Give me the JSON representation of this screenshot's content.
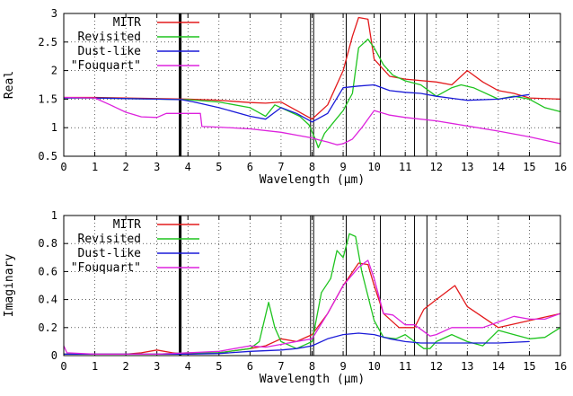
{
  "chart_data": [
    {
      "type": "line",
      "xlabel": "Wavelength (µm)",
      "ylabel": "Real",
      "xlim": [
        0,
        16
      ],
      "ylim": [
        0.5,
        3
      ],
      "xticks": [
        0,
        1,
        2,
        3,
        4,
        5,
        6,
        7,
        8,
        9,
        10,
        11,
        12,
        13,
        14,
        15,
        16
      ],
      "xtick_labels": [
        "0",
        "1",
        "2",
        "3",
        "4",
        "5",
        "6",
        "7",
        "8",
        "9",
        "10",
        "11",
        "12",
        "13",
        "14",
        "15",
        "16"
      ],
      "yticks": [
        0.5,
        1,
        1.5,
        2,
        2.5,
        3
      ],
      "ytick_labels": [
        "0.5",
        "1",
        "1.5",
        "2",
        "2.5",
        "3"
      ],
      "grid": true,
      "legend_position": "top-left",
      "vlines": [
        {
          "x": 3.75,
          "style": "thick"
        },
        {
          "x": 7.95,
          "style": "thin"
        },
        {
          "x": 8.05,
          "style": "thin"
        },
        {
          "x": 9.1,
          "style": "thin"
        },
        {
          "x": 10.2,
          "style": "thin"
        },
        {
          "x": 11.3,
          "style": "thin"
        },
        {
          "x": 11.7,
          "style": "thin"
        }
      ],
      "series": [
        {
          "name": "MITR",
          "color": "#e31a1c",
          "points": [
            [
              0,
              1.53
            ],
            [
              1,
              1.53
            ],
            [
              2,
              1.52
            ],
            [
              3,
              1.51
            ],
            [
              4,
              1.5
            ],
            [
              5,
              1.48
            ],
            [
              6,
              1.44
            ],
            [
              6.5,
              1.43
            ],
            [
              7,
              1.45
            ],
            [
              7.5,
              1.3
            ],
            [
              8,
              1.15
            ],
            [
              8.5,
              1.4
            ],
            [
              9,
              2.0
            ],
            [
              9.3,
              2.6
            ],
            [
              9.5,
              2.93
            ],
            [
              9.8,
              2.9
            ],
            [
              10,
              2.2
            ],
            [
              10.5,
              1.9
            ],
            [
              11,
              1.85
            ],
            [
              12,
              1.8
            ],
            [
              12.5,
              1.75
            ],
            [
              13,
              2.0
            ],
            [
              13.5,
              1.8
            ],
            [
              14,
              1.65
            ],
            [
              14.5,
              1.6
            ],
            [
              15,
              1.52
            ],
            [
              16,
              1.5
            ]
          ]
        },
        {
          "name": "Revisited",
          "color": "#1fc41f",
          "points": [
            [
              0,
              1.52
            ],
            [
              1,
              1.52
            ],
            [
              2,
              1.51
            ],
            [
              3,
              1.5
            ],
            [
              4,
              1.49
            ],
            [
              5,
              1.45
            ],
            [
              6,
              1.35
            ],
            [
              6.5,
              1.2
            ],
            [
              6.8,
              1.4
            ],
            [
              7.2,
              1.3
            ],
            [
              7.6,
              1.2
            ],
            [
              7.9,
              1.05
            ],
            [
              8.1,
              0.8
            ],
            [
              8.2,
              0.65
            ],
            [
              8.4,
              0.9
            ],
            [
              8.7,
              1.1
            ],
            [
              9,
              1.3
            ],
            [
              9.3,
              1.6
            ],
            [
              9.5,
              2.4
            ],
            [
              9.8,
              2.55
            ],
            [
              10,
              2.4
            ],
            [
              10.3,
              2.1
            ],
            [
              10.6,
              1.92
            ],
            [
              11,
              1.82
            ],
            [
              11.5,
              1.75
            ],
            [
              12,
              1.55
            ],
            [
              12.5,
              1.7
            ],
            [
              12.8,
              1.75
            ],
            [
              13.2,
              1.7
            ],
            [
              14,
              1.5
            ],
            [
              14.5,
              1.55
            ],
            [
              15,
              1.5
            ],
            [
              15.5,
              1.35
            ],
            [
              16,
              1.28
            ]
          ]
        },
        {
          "name": "Dust-like",
          "color": "#1a1ad8",
          "points": [
            [
              0,
              1.52
            ],
            [
              1,
              1.52
            ],
            [
              2,
              1.51
            ],
            [
              3,
              1.5
            ],
            [
              3.8,
              1.49
            ],
            [
              4.2,
              1.45
            ],
            [
              5,
              1.35
            ],
            [
              6,
              1.2
            ],
            [
              6.5,
              1.15
            ],
            [
              7,
              1.35
            ],
            [
              7.5,
              1.25
            ],
            [
              8,
              1.1
            ],
            [
              8.5,
              1.25
            ],
            [
              9,
              1.7
            ],
            [
              9.5,
              1.73
            ],
            [
              10,
              1.75
            ],
            [
              10.5,
              1.65
            ],
            [
              11,
              1.62
            ],
            [
              11.5,
              1.6
            ],
            [
              12,
              1.55
            ],
            [
              13,
              1.48
            ],
            [
              14,
              1.5
            ],
            [
              15,
              1.58
            ]
          ]
        },
        {
          "name": "\"Fouquart\"",
          "color": "#dd22dd",
          "points": [
            [
              0,
              1.53
            ],
            [
              1,
              1.52
            ],
            [
              1.5,
              1.4
            ],
            [
              2,
              1.27
            ],
            [
              2.5,
              1.19
            ],
            [
              3,
              1.18
            ],
            [
              3.3,
              1.25
            ],
            [
              3.8,
              1.25
            ],
            [
              4.4,
              1.25
            ],
            [
              4.45,
              1.02
            ],
            [
              5,
              1.01
            ],
            [
              6,
              0.98
            ],
            [
              7,
              0.92
            ],
            [
              7.5,
              0.87
            ],
            [
              8,
              0.82
            ],
            [
              8.2,
              0.79
            ],
            [
              8.5,
              0.75
            ],
            [
              8.8,
              0.7
            ],
            [
              9,
              0.72
            ],
            [
              9.3,
              0.8
            ],
            [
              9.6,
              1.0
            ],
            [
              10,
              1.3
            ],
            [
              10.5,
              1.22
            ],
            [
              11,
              1.18
            ],
            [
              12,
              1.12
            ],
            [
              13,
              1.03
            ],
            [
              14,
              0.94
            ],
            [
              15,
              0.84
            ],
            [
              16,
              0.72
            ]
          ]
        }
      ]
    },
    {
      "type": "line",
      "xlabel": "Wavelength (µm)",
      "ylabel": "Imaginary",
      "xlim": [
        0,
        16
      ],
      "ylim": [
        0,
        1
      ],
      "xticks": [
        0,
        1,
        2,
        3,
        4,
        5,
        6,
        7,
        8,
        9,
        10,
        11,
        12,
        13,
        14,
        15,
        16
      ],
      "xtick_labels": [
        "0",
        "1",
        "2",
        "3",
        "4",
        "5",
        "6",
        "7",
        "8",
        "9",
        "10",
        "11",
        "12",
        "13",
        "14",
        "15",
        "16"
      ],
      "yticks": [
        0,
        0.2,
        0.4,
        0.6,
        0.8,
        1
      ],
      "ytick_labels": [
        "0",
        "0.2",
        "0.4",
        "0.6",
        "0.8",
        "1"
      ],
      "grid": true,
      "legend_position": "top-left",
      "vlines": [
        {
          "x": 3.75,
          "style": "thick"
        },
        {
          "x": 7.95,
          "style": "thin"
        },
        {
          "x": 8.05,
          "style": "thin"
        },
        {
          "x": 9.1,
          "style": "thin"
        },
        {
          "x": 10.2,
          "style": "thin"
        },
        {
          "x": 11.3,
          "style": "thin"
        },
        {
          "x": 11.7,
          "style": "thin"
        }
      ],
      "series": [
        {
          "name": "MITR",
          "color": "#e31a1c",
          "points": [
            [
              0,
              0.01
            ],
            [
              1,
              0.01
            ],
            [
              2,
              0.01
            ],
            [
              2.5,
              0.02
            ],
            [
              3,
              0.04
            ],
            [
              3.5,
              0.02
            ],
            [
              4,
              0.01
            ],
            [
              5,
              0.02
            ],
            [
              6,
              0.05
            ],
            [
              6.5,
              0.07
            ],
            [
              7,
              0.12
            ],
            [
              7.5,
              0.1
            ],
            [
              8,
              0.15
            ],
            [
              8.5,
              0.3
            ],
            [
              9,
              0.5
            ],
            [
              9.5,
              0.66
            ],
            [
              9.8,
              0.65
            ],
            [
              10,
              0.5
            ],
            [
              10.3,
              0.3
            ],
            [
              10.8,
              0.2
            ],
            [
              11.3,
              0.2
            ],
            [
              11.6,
              0.33
            ],
            [
              12,
              0.4
            ],
            [
              12.6,
              0.5
            ],
            [
              13,
              0.35
            ],
            [
              14,
              0.2
            ],
            [
              15,
              0.25
            ],
            [
              16,
              0.3
            ]
          ]
        },
        {
          "name": "Revisited",
          "color": "#1fc41f",
          "points": [
            [
              0,
              0.01
            ],
            [
              1,
              0.01
            ],
            [
              2,
              0.01
            ],
            [
              3,
              0.01
            ],
            [
              4,
              0.02
            ],
            [
              5,
              0.02
            ],
            [
              6,
              0.05
            ],
            [
              6.3,
              0.1
            ],
            [
              6.6,
              0.38
            ],
            [
              6.8,
              0.2
            ],
            [
              7,
              0.1
            ],
            [
              7.5,
              0.05
            ],
            [
              8,
              0.1
            ],
            [
              8.3,
              0.45
            ],
            [
              8.6,
              0.55
            ],
            [
              8.8,
              0.75
            ],
            [
              9,
              0.7
            ],
            [
              9.2,
              0.87
            ],
            [
              9.4,
              0.85
            ],
            [
              9.6,
              0.6
            ],
            [
              10,
              0.25
            ],
            [
              10.3,
              0.13
            ],
            [
              10.7,
              0.12
            ],
            [
              11,
              0.15
            ],
            [
              11.3,
              0.1
            ],
            [
              11.6,
              0.05
            ],
            [
              11.8,
              0.05
            ],
            [
              12,
              0.1
            ],
            [
              12.5,
              0.15
            ],
            [
              13,
              0.1
            ],
            [
              13.5,
              0.07
            ],
            [
              14,
              0.18
            ],
            [
              14.5,
              0.15
            ],
            [
              15,
              0.12
            ],
            [
              15.5,
              0.13
            ],
            [
              16,
              0.2
            ]
          ]
        },
        {
          "name": "Dust-like",
          "color": "#1a1ad8",
          "points": [
            [
              0,
              0.01
            ],
            [
              1,
              0.01
            ],
            [
              2,
              0.01
            ],
            [
              3,
              0.01
            ],
            [
              4,
              0.01
            ],
            [
              5,
              0.015
            ],
            [
              6,
              0.03
            ],
            [
              7,
              0.04
            ],
            [
              7.5,
              0.05
            ],
            [
              8,
              0.07
            ],
            [
              8.5,
              0.12
            ],
            [
              9,
              0.15
            ],
            [
              9.5,
              0.16
            ],
            [
              10,
              0.15
            ],
            [
              10.5,
              0.12
            ],
            [
              11,
              0.1
            ],
            [
              11.5,
              0.09
            ],
            [
              12,
              0.09
            ],
            [
              13,
              0.09
            ],
            [
              14,
              0.09
            ],
            [
              15,
              0.1
            ]
          ]
        },
        {
          "name": "\"Fouquart\"",
          "color": "#dd22dd",
          "points": [
            [
              0,
              0.07
            ],
            [
              0.1,
              0.02
            ],
            [
              1,
              0.01
            ],
            [
              2,
              0.01
            ],
            [
              3,
              0.01
            ],
            [
              4,
              0.02
            ],
            [
              5,
              0.03
            ],
            [
              6,
              0.07
            ],
            [
              6.5,
              0.06
            ],
            [
              7,
              0.08
            ],
            [
              7.5,
              0.1
            ],
            [
              8,
              0.12
            ],
            [
              8.5,
              0.3
            ],
            [
              9,
              0.5
            ],
            [
              9.5,
              0.63
            ],
            [
              9.8,
              0.68
            ],
            [
              10,
              0.55
            ],
            [
              10.3,
              0.3
            ],
            [
              10.6,
              0.29
            ],
            [
              11,
              0.22
            ],
            [
              11.3,
              0.22
            ],
            [
              11.8,
              0.14
            ],
            [
              12,
              0.15
            ],
            [
              12.5,
              0.2
            ],
            [
              13,
              0.2
            ],
            [
              13.5,
              0.2
            ],
            [
              14,
              0.24
            ],
            [
              14.5,
              0.28
            ],
            [
              15,
              0.26
            ],
            [
              15.5,
              0.26
            ],
            [
              16,
              0.3
            ]
          ]
        }
      ]
    }
  ]
}
